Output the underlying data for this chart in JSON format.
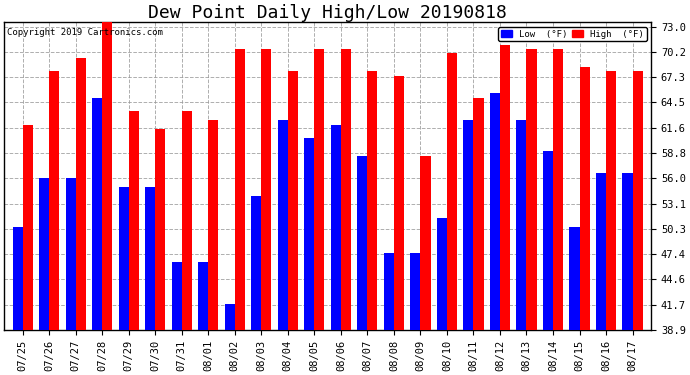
{
  "title": "Dew Point Daily High/Low 20190818",
  "copyright": "Copyright 2019 Cartronics.com",
  "dates": [
    "07/25",
    "07/26",
    "07/27",
    "07/28",
    "07/29",
    "07/30",
    "07/31",
    "08/01",
    "08/02",
    "08/03",
    "08/04",
    "08/05",
    "08/06",
    "08/07",
    "08/08",
    "08/09",
    "08/10",
    "08/11",
    "08/12",
    "08/13",
    "08/14",
    "08/15",
    "08/16",
    "08/17"
  ],
  "low_values": [
    50.5,
    56.0,
    56.0,
    65.0,
    55.0,
    55.0,
    46.5,
    46.5,
    41.8,
    54.0,
    62.5,
    60.5,
    62.0,
    58.5,
    47.5,
    47.5,
    51.5,
    62.5,
    65.5,
    62.5,
    59.0,
    50.5,
    56.5,
    56.5
  ],
  "high_values": [
    62.0,
    68.0,
    69.5,
    74.0,
    63.5,
    61.5,
    63.5,
    62.5,
    70.5,
    70.5,
    68.0,
    70.5,
    70.5,
    68.0,
    67.5,
    58.5,
    70.0,
    65.0,
    71.0,
    70.5,
    70.5,
    68.5,
    68.0,
    68.0
  ],
  "low_color": "#0000ff",
  "high_color": "#ff0000",
  "bg_color": "#ffffff",
  "plot_bg_color": "#ffffff",
  "grid_color": "#999999",
  "yticks": [
    38.9,
    41.7,
    44.6,
    47.4,
    50.3,
    53.1,
    56.0,
    58.8,
    61.6,
    64.5,
    67.3,
    70.2,
    73.0
  ],
  "ymin": 38.9,
  "ymax": 73.0,
  "bar_width": 0.38,
  "title_fontsize": 13,
  "tick_fontsize": 7.5,
  "legend_low_label": "Low  (°F)",
  "legend_high_label": "High  (°F)"
}
